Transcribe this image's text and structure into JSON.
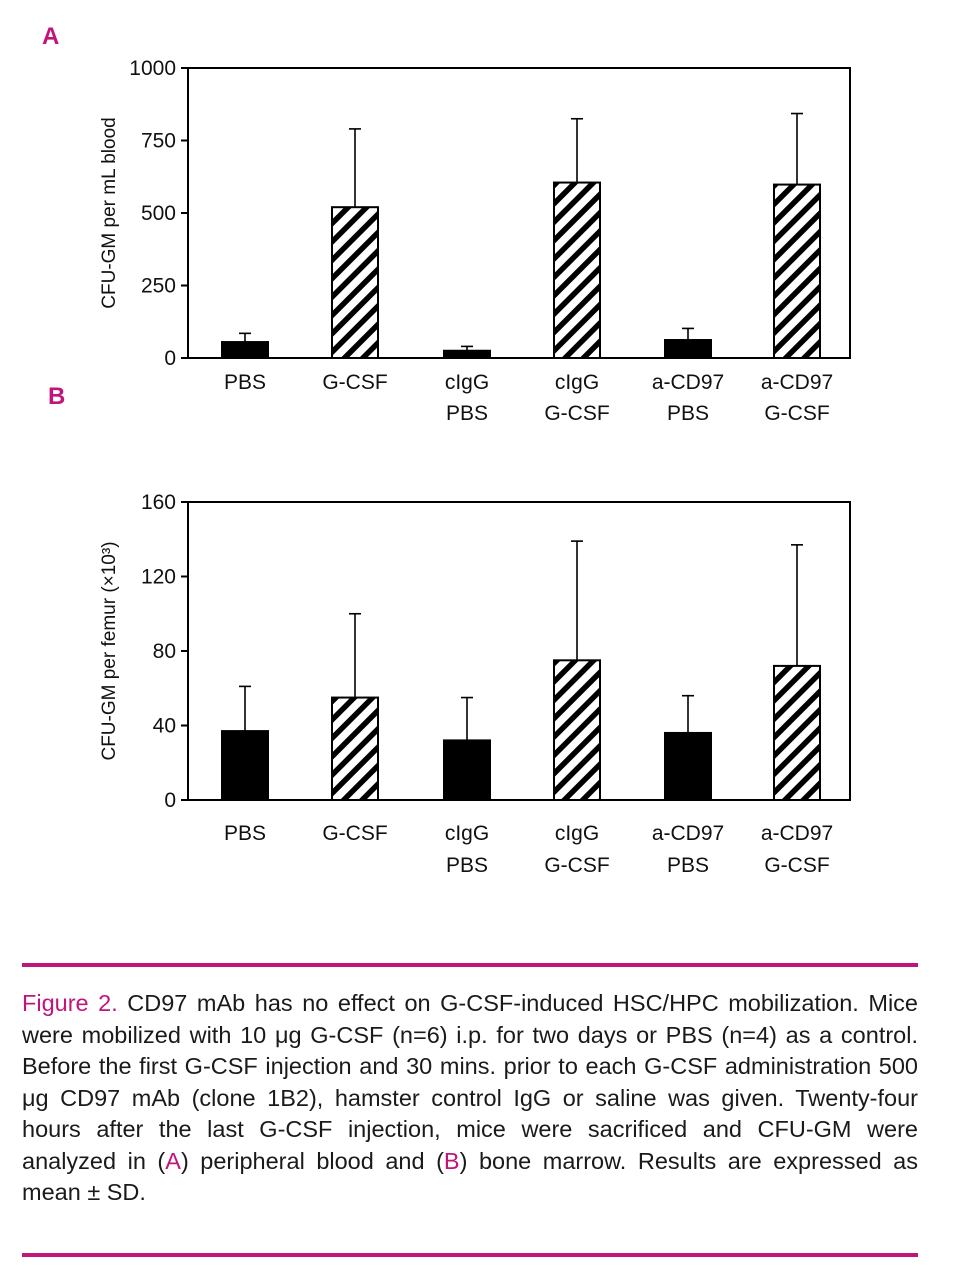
{
  "figure_label": "Figure 2.",
  "caption": {
    "title": "CD97 mAb has no effect on G-CSF-induced HSC/HPC mobilization.",
    "p1": "Mice were mobilized with 10 μg G-CSF (n=6) i.p. for two days or PBS (n=4) as a control. Before the first G-CSF injection and 30 mins. prior to each G-CSF administration 500 μg CD97 mAb (clone 1B2), hamster control IgG or saline was given. Twenty-four hours after the last G-CSF injection, mice were sacrificed and CFU-GM were analyzed in (",
    "ref_a": "A",
    "p2": ") peripheral blood and (",
    "ref_b": "B",
    "p3": ") bone marrow. Results are expressed as mean ± SD."
  },
  "colors": {
    "accent": "#c0157a",
    "solid_bar": "#000000"
  },
  "chart_data": [
    {
      "panel": "A",
      "type": "bar",
      "ylabel": "CFU-GM per mL blood",
      "ylim": [
        0,
        1000
      ],
      "yticks": [
        0,
        250,
        500,
        750,
        1000
      ],
      "categories": [
        [
          "PBS"
        ],
        [
          "G-CSF"
        ],
        [
          "cIgG",
          "PBS"
        ],
        [
          "cIgG",
          "G-CSF"
        ],
        [
          "a-CD97",
          "PBS"
        ],
        [
          "a-CD97",
          "G-CSF"
        ]
      ],
      "values": [
        55,
        520,
        25,
        605,
        62,
        598
      ],
      "errors": [
        30,
        270,
        15,
        220,
        40,
        245
      ],
      "fill": [
        "solid",
        "hatched",
        "solid",
        "hatched",
        "solid",
        "hatched"
      ]
    },
    {
      "panel": "B",
      "type": "bar",
      "ylabel": "CFU-GM per femur (×10³)",
      "ylim": [
        0,
        160
      ],
      "yticks": [
        0,
        40,
        80,
        120,
        160
      ],
      "categories": [
        [
          "PBS"
        ],
        [
          "G-CSF"
        ],
        [
          "cIgG",
          "PBS"
        ],
        [
          "cIgG",
          "G-CSF"
        ],
        [
          "a-CD97",
          "PBS"
        ],
        [
          "a-CD97",
          "G-CSF"
        ]
      ],
      "values": [
        37,
        55,
        32,
        75,
        36,
        72
      ],
      "errors": [
        24,
        45,
        23,
        64,
        20,
        65
      ],
      "fill": [
        "solid",
        "hatched",
        "solid",
        "hatched",
        "solid",
        "hatched"
      ]
    }
  ]
}
